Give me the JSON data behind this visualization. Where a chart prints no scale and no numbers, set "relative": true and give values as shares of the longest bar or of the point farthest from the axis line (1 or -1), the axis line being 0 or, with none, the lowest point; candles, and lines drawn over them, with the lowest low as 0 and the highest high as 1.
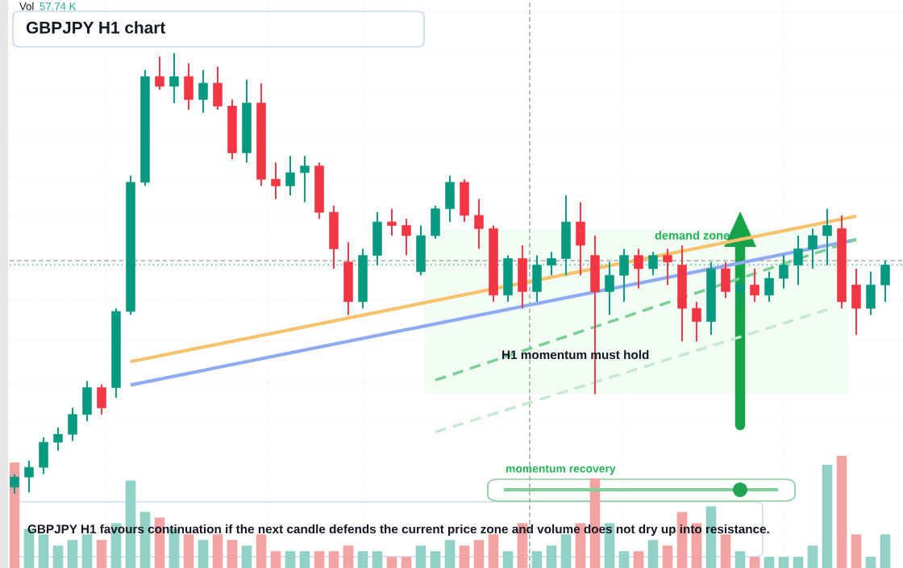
{
  "chart_data": [
    {
      "type": "candlestick",
      "title": "GBPJPY H1 chart",
      "relative": true,
      "grid": true,
      "categories": [
        null,
        null,
        null,
        null,
        null,
        null,
        null,
        null,
        null,
        null,
        null,
        null,
        null,
        null,
        null,
        null,
        null,
        null,
        null,
        null,
        null,
        null,
        null,
        null,
        null,
        null,
        null,
        null,
        null,
        null,
        null,
        null,
        null,
        null,
        null,
        null,
        null,
        null,
        null,
        null,
        null,
        null,
        null,
        null,
        null,
        null,
        null,
        null,
        null,
        null,
        null,
        null,
        null,
        null,
        null,
        null,
        null,
        null,
        null,
        null,
        null
      ],
      "ohlc": [
        [
          0.015,
          0.045,
          0,
          0.038
        ],
        [
          0.038,
          0.075,
          0.003,
          0.06
        ],
        [
          0.06,
          0.128,
          0.045,
          0.117
        ],
        [
          0.117,
          0.15,
          0.098,
          0.135
        ],
        [
          0.135,
          0.195,
          0.12,
          0.18
        ],
        [
          0.18,
          0.256,
          0.165,
          0.241
        ],
        [
          0.241,
          0.248,
          0.18,
          0.195
        ],
        [
          0.241,
          0.421,
          0.218,
          0.414
        ],
        [
          0.414,
          0.722,
          0.406,
          0.707
        ],
        [
          0.707,
          0.962,
          0.699,
          0.947
        ],
        [
          0.947,
          0.992,
          0.917,
          0.925
        ],
        [
          0.925,
          1,
          0.887,
          0.947
        ],
        [
          0.947,
          0.977,
          0.872,
          0.895
        ],
        [
          0.895,
          0.962,
          0.865,
          0.932
        ],
        [
          0.932,
          0.97,
          0.872,
          0.88
        ],
        [
          0.88,
          0.895,
          0.759,
          0.774
        ],
        [
          0.774,
          0.94,
          0.752,
          0.887
        ],
        [
          0.887,
          0.932,
          0.699,
          0.714
        ],
        [
          0.714,
          0.752,
          0.669,
          0.699
        ],
        [
          0.699,
          0.767,
          0.677,
          0.729
        ],
        [
          0.729,
          0.767,
          0.662,
          0.744
        ],
        [
          0.744,
          0.752,
          0.624,
          0.639
        ],
        [
          0.639,
          0.654,
          0.511,
          0.556
        ],
        [
          0.526,
          0.571,
          0.406,
          0.436
        ],
        [
          0.436,
          0.556,
          0.421,
          0.541
        ],
        [
          0.541,
          0.639,
          0.519,
          0.617
        ],
        [
          0.617,
          0.647,
          0.586,
          0.609
        ],
        [
          0.609,
          0.624,
          0.541,
          0.586
        ],
        [
          0.504,
          0.609,
          0.496,
          0.586
        ],
        [
          0.586,
          0.654,
          0.579,
          0.647
        ],
        [
          0.647,
          0.722,
          0.617,
          0.707
        ],
        [
          0.707,
          0.714,
          0.617,
          0.632
        ],
        [
          0.632,
          0.669,
          0.556,
          0.602
        ],
        [
          0.602,
          0.609,
          0.436,
          0.451
        ],
        [
          0.451,
          0.541,
          0.436,
          0.534
        ],
        [
          0.534,
          0.564,
          0.421,
          0.459
        ],
        [
          0.459,
          0.541,
          0.436,
          0.519
        ],
        [
          0.519,
          0.549,
          0.496,
          0.534
        ],
        [
          0.534,
          0.677,
          0.496,
          0.617
        ],
        [
          0.617,
          0.662,
          0.496,
          0.564
        ],
        [
          0.541,
          0.586,
          0.226,
          0.459
        ],
        [
          0.459,
          0.526,
          0.406,
          0.496
        ],
        [
          0.496,
          0.556,
          0.436,
          0.541
        ],
        [
          0.541,
          0.556,
          0.466,
          0.511
        ],
        [
          0.511,
          0.549,
          0.496,
          0.541
        ],
        [
          0.541,
          0.556,
          0.474,
          0.526
        ],
        [
          0.519,
          0.564,
          0.346,
          0.421
        ],
        [
          0.421,
          0.436,
          0.346,
          0.391
        ],
        [
          0.391,
          0.526,
          0.361,
          0.511
        ],
        [
          0.511,
          0.526,
          0.444,
          0.459
        ],
        [
          0.459,
          0.489,
          0.421,
          0.474
        ],
        [
          0.474,
          0.511,
          0.436,
          0.451
        ],
        [
          0.451,
          0.504,
          0.436,
          0.489
        ],
        [
          0.489,
          0.541,
          0.466,
          0.519
        ],
        [
          0.519,
          0.586,
          0.474,
          0.556
        ],
        [
          0.556,
          0.602,
          0.511,
          0.586
        ],
        [
          0.586,
          0.647,
          0.519,
          0.609
        ],
        [
          0.602,
          0.632,
          0.421,
          0.436
        ],
        [
          0.474,
          0.511,
          0.361,
          0.421
        ],
        [
          0.421,
          0.504,
          0.406,
          0.474
        ],
        [
          0.474,
          0.529,
          0.436,
          0.519
        ]
      ],
      "colors": [
        "#089981",
        "#089981",
        "#089981",
        "#089981",
        "#089981",
        "#089981",
        "#f23645",
        "#089981",
        "#089981",
        "#089981",
        "#f23645",
        "#089981",
        "#f23645",
        "#089981",
        "#f23645",
        "#f23645",
        "#089981",
        "#f23645",
        "#f23645",
        "#089981",
        "#089981",
        "#f23645",
        "#f23645",
        "#f23645",
        "#089981",
        "#089981",
        "#f23645",
        "#f23645",
        "#089981",
        "#089981",
        "#089981",
        "#f23645",
        "#f23645",
        "#f23645",
        "#089981",
        "#f23645",
        "#089981",
        "#089981",
        "#089981",
        "#f23645",
        "#f23645",
        "#089981",
        "#089981",
        "#f23645",
        "#089981",
        "#f23645",
        "#f23645",
        "#f23645",
        "#089981",
        "#f23645",
        "#089981",
        "#f23645",
        "#089981",
        "#089981",
        "#089981",
        "#089981",
        "#089981",
        "#f23645",
        "#f23645",
        "#089981",
        "#089981"
      ],
      "series": [
        {
          "type": "line",
          "color": "#f7c26b",
          "line_style": "solid",
          "values": [
            null,
            null,
            null,
            null,
            null,
            null,
            null,
            null,
            0.3,
            null,
            null,
            null,
            null,
            null,
            null,
            null,
            null,
            null,
            null,
            null,
            null,
            null,
            null,
            null,
            null,
            null,
            null,
            null,
            null,
            null,
            null,
            null,
            null,
            null,
            null,
            null,
            null,
            null,
            null,
            null,
            null,
            null,
            null,
            null,
            null,
            null,
            null,
            null,
            null,
            null,
            null,
            null,
            null,
            null,
            null,
            null,
            null,
            null,
            0.63,
            null,
            null
          ]
        },
        {
          "type": "line",
          "color": "#8eaaf0",
          "line_style": "solid",
          "values": [
            null,
            null,
            null,
            null,
            null,
            null,
            null,
            null,
            0.247,
            null,
            null,
            null,
            null,
            null,
            null,
            null,
            null,
            null,
            null,
            null,
            null,
            null,
            null,
            null,
            null,
            null,
            null,
            null,
            null,
            null,
            null,
            null,
            null,
            null,
            null,
            null,
            null,
            null,
            null,
            null,
            null,
            null,
            null,
            null,
            null,
            null,
            null,
            null,
            null,
            null,
            null,
            null,
            null,
            null,
            null,
            null,
            null,
            null,
            0.577,
            null,
            null
          ]
        },
        {
          "type": "line",
          "color": "#7bcf95",
          "line_style": "dashed",
          "values": [
            null,
            null,
            null,
            null,
            null,
            null,
            null,
            null,
            null,
            null,
            null,
            null,
            null,
            null,
            null,
            null,
            null,
            null,
            null,
            null,
            null,
            null,
            null,
            null,
            null,
            null,
            null,
            null,
            null,
            0.258,
            null,
            null,
            null,
            null,
            null,
            null,
            null,
            null,
            null,
            null,
            null,
            null,
            null,
            null,
            null,
            null,
            null,
            null,
            null,
            null,
            null,
            null,
            null,
            null,
            null,
            null,
            null,
            null,
            0.577,
            null,
            null
          ]
        },
        {
          "type": "line",
          "color": "#c3ead0",
          "line_style": "dashed",
          "values": [
            null,
            null,
            null,
            null,
            null,
            null,
            null,
            null,
            null,
            null,
            null,
            null,
            null,
            null,
            null,
            null,
            null,
            null,
            null,
            null,
            null,
            null,
            null,
            null,
            null,
            null,
            null,
            null,
            null,
            0.14,
            null,
            null,
            null,
            null,
            null,
            null,
            null,
            null,
            null,
            null,
            null,
            null,
            null,
            null,
            null,
            null,
            null,
            null,
            null,
            null,
            null,
            null,
            null,
            null,
            null,
            null,
            0.418,
            null,
            null,
            null,
            null
          ]
        }
      ],
      "ref_lines": [
        {
          "axis": "y",
          "value": 0.529,
          "color": "#9e9e9e",
          "line_style": "dashed"
        },
        {
          "axis": "y",
          "value": 0.52,
          "color": "#089981",
          "line_style": "dotted"
        }
      ],
      "bands": [
        {
          "axis": "y",
          "from": 0.226,
          "to": 0.602,
          "label": "demand zone",
          "color": "#f3fbf5"
        }
      ],
      "annotations": [
        "H1 momentum must hold",
        "momentum recovery",
        "GBPJPY H1 favours continuation if the next candle defends the current price zone and volume does not dry up into resistance."
      ]
    },
    {
      "type": "bar",
      "relative": true,
      "annotations": [
        "Vol",
        "57.74 K"
      ],
      "categories": [
        null,
        null,
        null,
        null,
        null,
        null,
        null,
        null,
        null,
        null,
        null,
        null,
        null,
        null,
        null,
        null,
        null,
        null,
        null,
        null,
        null,
        null,
        null,
        null,
        null,
        null,
        null,
        null,
        null,
        null,
        null,
        null,
        null,
        null,
        null,
        null,
        null,
        null,
        null,
        null,
        null,
        null,
        null,
        null,
        null,
        null,
        null,
        null,
        null,
        null,
        null,
        null,
        null,
        null,
        null,
        null,
        null,
        null,
        null,
        null,
        null
      ],
      "values": [
        0.94,
        0.35,
        0.3,
        0.2,
        0.25,
        0.3,
        0.25,
        0.4,
        0.78,
        0.5,
        0.45,
        0.35,
        0.3,
        0.25,
        0.3,
        0.25,
        0.2,
        0.3,
        0.15,
        0.15,
        0.15,
        0.15,
        0.15,
        0.2,
        0.15,
        0.15,
        0.1,
        0.1,
        0.2,
        0.15,
        0.25,
        0.2,
        0.25,
        0.3,
        0.15,
        0.4,
        0.15,
        0.2,
        0.3,
        0.4,
        0.8,
        0.4,
        0.15,
        0.15,
        0.25,
        0.2,
        0.5,
        0.4,
        0.55,
        0.3,
        0.15,
        0.1,
        0.1,
        0.1,
        0.1,
        0.2,
        0.92,
        1,
        0.3,
        0.1,
        0.3
      ],
      "colors": [
        "#f3a3a2",
        "#92d1c6",
        "#92d1c6",
        "#92d1c6",
        "#92d1c6",
        "#92d1c6",
        "#f3a3a2",
        "#92d1c6",
        "#92d1c6",
        "#92d1c6",
        "#f3a3a2",
        "#92d1c6",
        "#f3a3a2",
        "#92d1c6",
        "#f3a3a2",
        "#f3a3a2",
        "#92d1c6",
        "#f3a3a2",
        "#f3a3a2",
        "#92d1c6",
        "#92d1c6",
        "#f3a3a2",
        "#f3a3a2",
        "#f3a3a2",
        "#92d1c6",
        "#92d1c6",
        "#f3a3a2",
        "#f3a3a2",
        "#92d1c6",
        "#92d1c6",
        "#92d1c6",
        "#f3a3a2",
        "#f3a3a2",
        "#f3a3a2",
        "#92d1c6",
        "#f3a3a2",
        "#92d1c6",
        "#92d1c6",
        "#92d1c6",
        "#f3a3a2",
        "#f3a3a2",
        "#92d1c6",
        "#92d1c6",
        "#f3a3a2",
        "#92d1c6",
        "#f3a3a2",
        "#f3a3a2",
        "#f3a3a2",
        "#92d1c6",
        "#f3a3a2",
        "#92d1c6",
        "#f3a3a2",
        "#92d1c6",
        "#92d1c6",
        "#92d1c6",
        "#92d1c6",
        "#92d1c6",
        "#f3a3a2",
        "#f3a3a2",
        "#92d1c6",
        "#92d1c6"
      ]
    }
  ]
}
